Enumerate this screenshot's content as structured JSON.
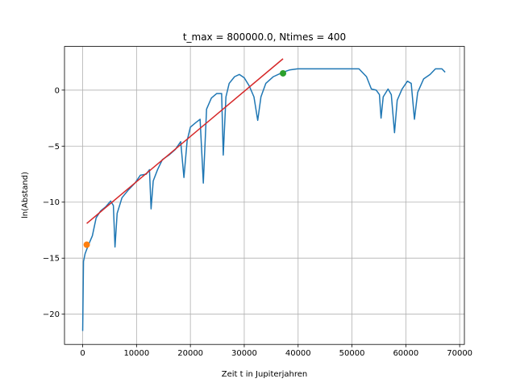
{
  "chart_data": {
    "type": "line",
    "title": "t_max = 800000.0, Ntimes = 400",
    "xlabel": "Zeit t in Jupiterjahren",
    "ylabel": "ln(Abstand)",
    "xlim": [
      -3375,
      70875
    ],
    "ylim": [
      -22.7,
      3.9
    ],
    "xticks": [
      0,
      10000,
      20000,
      30000,
      40000,
      50000,
      60000,
      70000
    ],
    "yticks": [
      {
        "value": -20,
        "label": "−20"
      },
      {
        "value": -15,
        "label": "−15"
      },
      {
        "value": -10,
        "label": "−10"
      },
      {
        "value": -5,
        "label": "−5"
      },
      0
    ],
    "grid": true,
    "series": [
      {
        "style": "line",
        "color": "#1f77b4",
        "x": [
          0,
          150,
          450,
          1000,
          1800,
          2500,
          3300,
          4300,
          5200,
          5700,
          6000,
          6400,
          7300,
          8500,
          9700,
          10700,
          11800,
          12400,
          12700,
          13100,
          13900,
          14800,
          16000,
          17200,
          18200,
          18800,
          19400,
          20000,
          21000,
          21800,
          22400,
          23000,
          23900,
          24900,
          25800,
          26100,
          26600,
          27200,
          28200,
          29100,
          30000,
          30900,
          31800,
          32500,
          33100,
          34000,
          35400,
          37200,
          38400,
          39900,
          42800,
          45800,
          48800,
          51300,
          52700,
          53600,
          54500,
          55100,
          55400,
          55800,
          56700,
          57300,
          57900,
          58400,
          59300,
          60300,
          61000,
          61600,
          62200,
          63300,
          64500,
          65500,
          66700,
          67300
        ],
        "values": [
          -21.5,
          -15.3,
          -14.6,
          -13.9,
          -13,
          -11.4,
          -10.8,
          -10.4,
          -9.9,
          -10.3,
          -14,
          -11,
          -9.6,
          -8.9,
          -8.3,
          -7.6,
          -7.5,
          -7.1,
          -10.6,
          -8.1,
          -7.1,
          -6.2,
          -5.8,
          -5.3,
          -4.6,
          -7.8,
          -4.5,
          -3.3,
          -2.9,
          -2.6,
          -8.3,
          -1.7,
          -0.7,
          -0.3,
          -0.3,
          -5.8,
          -0.6,
          0.6,
          1.2,
          1.4,
          1.1,
          0.4,
          -0.6,
          -2.7,
          -0.6,
          0.6,
          1.2,
          1.6,
          1.8,
          1.9,
          1.9,
          1.9,
          1.9,
          1.9,
          1.2,
          0.1,
          0,
          -0.4,
          -2.5,
          -0.6,
          0.1,
          -0.4,
          -3.8,
          -0.9,
          0.1,
          0.8,
          0.6,
          -2.6,
          -0.2,
          1.0,
          1.4,
          1.9,
          1.9,
          1.6
        ]
      },
      {
        "style": "line",
        "color": "#d62728",
        "x": [
          750,
          37200
        ],
        "values": [
          -11.9,
          2.8
        ]
      },
      {
        "style": "marker",
        "color": "#ff7f0e",
        "x": [
          750
        ],
        "values": [
          -13.8
        ]
      },
      {
        "style": "marker",
        "color": "#2ca02c",
        "x": [
          37200
        ],
        "values": [
          1.5
        ]
      }
    ]
  }
}
